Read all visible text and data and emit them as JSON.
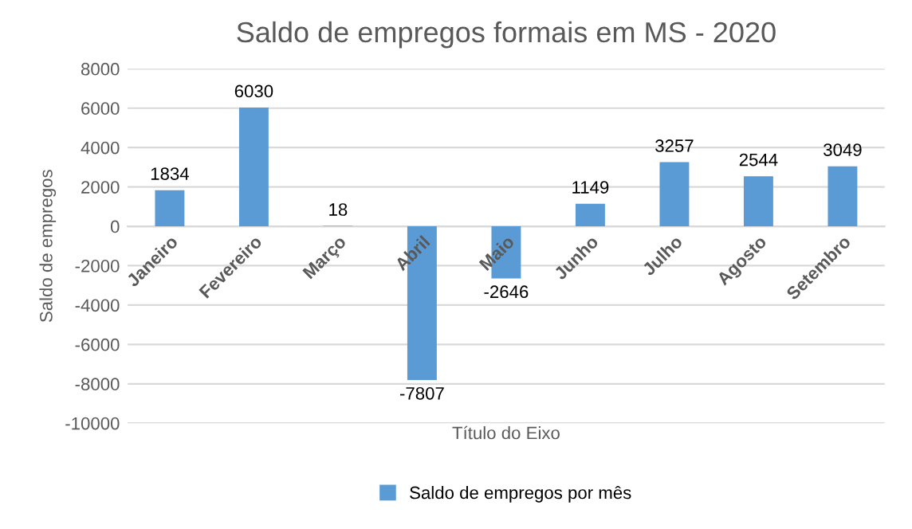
{
  "chart_data": {
    "type": "bar",
    "title": "Saldo de empregos formais em MS - 2020",
    "xlabel": "Título do Eixo",
    "ylabel": "Saldo de empregos",
    "categories": [
      "Janeiro",
      "Fevereiro",
      "Março",
      "Abril",
      "Maio",
      "Junho",
      "Julho",
      "Agosto",
      "Setembro"
    ],
    "series": [
      {
        "name": "Saldo de empregos por mês",
        "color": "#5b9bd5",
        "values": [
          1834,
          6030,
          18,
          -7807,
          -2646,
          1149,
          3257,
          2544,
          3049
        ]
      }
    ],
    "ylim": [
      -10000,
      8000
    ],
    "yticks": [
      -10000,
      -8000,
      -6000,
      -4000,
      -2000,
      0,
      2000,
      4000,
      6000,
      8000
    ],
    "grid": "y",
    "legend": "bottom",
    "data_labels": true
  }
}
